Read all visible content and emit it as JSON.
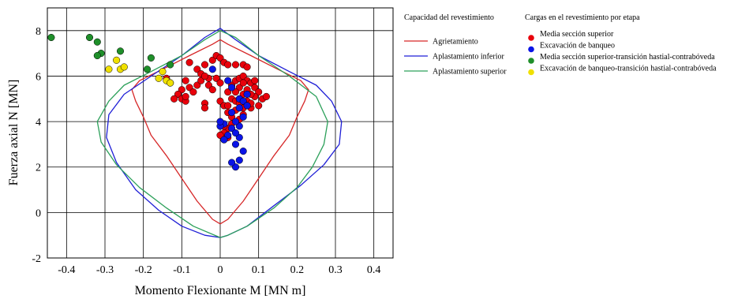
{
  "chart_data": {
    "type": "scatter",
    "xlabel": "Momento Flexionante M [MN m]",
    "ylabel": "Fuerza axial N [MN]",
    "xlim": [
      -0.45,
      0.45
    ],
    "ylim": [
      -2,
      9
    ],
    "xticks": [
      "-0.4",
      "-0.3",
      "-0.2",
      "-0.1",
      "0",
      "0.1",
      "0.2",
      "0.3",
      "0.4"
    ],
    "yticks": [
      "-2",
      "0",
      "2",
      "4",
      "6",
      "8"
    ],
    "grid": true,
    "legend_placement": "right",
    "capacity_legend_title": "Capacidad del revestimiento",
    "loads_legend_title": "Cargas en el revestimiento por etapa",
    "capacity_curves": [
      {
        "name": "Agrietamiento",
        "color": "#d62728",
        "points": [
          [
            0,
            -0.5
          ],
          [
            -0.02,
            -0.3
          ],
          [
            -0.06,
            0.5
          ],
          [
            -0.1,
            1.5
          ],
          [
            -0.14,
            2.5
          ],
          [
            -0.18,
            3.4
          ],
          [
            -0.2,
            4.2
          ],
          [
            -0.22,
            4.9
          ],
          [
            -0.23,
            5.4
          ],
          [
            -0.21,
            5.8
          ],
          [
            -0.15,
            6.3
          ],
          [
            -0.08,
            6.9
          ],
          [
            -0.02,
            7.4
          ],
          [
            0,
            7.6
          ],
          [
            0.02,
            7.4
          ],
          [
            0.08,
            6.9
          ],
          [
            0.15,
            6.3
          ],
          [
            0.21,
            5.8
          ],
          [
            0.23,
            5.4
          ],
          [
            0.22,
            4.9
          ],
          [
            0.2,
            4.2
          ],
          [
            0.18,
            3.4
          ],
          [
            0.14,
            2.5
          ],
          [
            0.1,
            1.5
          ],
          [
            0.06,
            0.5
          ],
          [
            0.02,
            -0.3
          ],
          [
            0,
            -0.5
          ]
        ]
      },
      {
        "name": "Aplastamiento inferior",
        "color": "#1f1fd6",
        "points": [
          [
            0,
            -1.1
          ],
          [
            -0.04,
            -1.0
          ],
          [
            -0.1,
            -0.6
          ],
          [
            -0.16,
            0.1
          ],
          [
            -0.22,
            1.0
          ],
          [
            -0.27,
            2.2
          ],
          [
            -0.296,
            3.3
          ],
          [
            -0.29,
            4.3
          ],
          [
            -0.25,
            5.2
          ],
          [
            -0.18,
            6.0
          ],
          [
            -0.1,
            6.9
          ],
          [
            -0.04,
            7.7
          ],
          [
            0,
            8.1
          ],
          [
            0.04,
            7.6
          ],
          [
            0.1,
            6.9
          ],
          [
            0.18,
            6.2
          ],
          [
            0.25,
            5.6
          ],
          [
            0.29,
            4.9
          ],
          [
            0.316,
            4.0
          ],
          [
            0.31,
            3.0
          ],
          [
            0.27,
            2.1
          ],
          [
            0.21,
            1.2
          ],
          [
            0.14,
            0.3
          ],
          [
            0.07,
            -0.6
          ],
          [
            0.02,
            -1.0
          ],
          [
            0,
            -1.1
          ]
        ]
      },
      {
        "name": "Aplastamiento superior",
        "color": "#2ca05a",
        "points": [
          [
            0,
            -1.1
          ],
          [
            -0.07,
            -0.6
          ],
          [
            -0.14,
            0.2
          ],
          [
            -0.21,
            1.1
          ],
          [
            -0.27,
            2.1
          ],
          [
            -0.31,
            3.1
          ],
          [
            -0.32,
            4.0
          ],
          [
            -0.29,
            4.9
          ],
          [
            -0.25,
            5.6
          ],
          [
            -0.18,
            6.2
          ],
          [
            -0.1,
            6.9
          ],
          [
            -0.04,
            7.6
          ],
          [
            0,
            8.0
          ],
          [
            0.04,
            7.7
          ],
          [
            0.1,
            6.9
          ],
          [
            0.18,
            6.0
          ],
          [
            0.25,
            5.1
          ],
          [
            0.28,
            4.0
          ],
          [
            0.27,
            3.0
          ],
          [
            0.24,
            2.0
          ],
          [
            0.2,
            1.1
          ],
          [
            0.14,
            0.2
          ],
          [
            0.07,
            -0.6
          ],
          [
            0.02,
            -1.0
          ],
          [
            0,
            -1.1
          ]
        ]
      }
    ],
    "series": [
      {
        "name": "Media sección superior",
        "color": "#e8000b",
        "points": [
          [
            -0.08,
            6.6
          ],
          [
            -0.06,
            6.3
          ],
          [
            -0.05,
            6.1
          ],
          [
            -0.04,
            6.5
          ],
          [
            -0.03,
            5.9
          ],
          [
            -0.02,
            6.7
          ],
          [
            -0.01,
            6.9
          ],
          [
            0,
            6.8
          ],
          [
            0.01,
            6.6
          ],
          [
            0.02,
            6.5
          ],
          [
            0.04,
            6.5
          ],
          [
            0.06,
            6.5
          ],
          [
            0.07,
            6.4
          ],
          [
            -0.09,
            5.8
          ],
          [
            -0.08,
            5.5
          ],
          [
            -0.07,
            5.3
          ],
          [
            -0.06,
            5.6
          ],
          [
            -0.05,
            5.8
          ],
          [
            -0.04,
            6.0
          ],
          [
            -0.03,
            5.6
          ],
          [
            -0.02,
            5.4
          ],
          [
            -0.01,
            5.9
          ],
          [
            0,
            5.7
          ],
          [
            -0.1,
            5.4
          ],
          [
            -0.11,
            5.2
          ],
          [
            -0.12,
            5.0
          ],
          [
            -0.1,
            5.0
          ],
          [
            -0.09,
            4.9
          ],
          [
            -0.09,
            5.1
          ],
          [
            -0.13,
            5.7
          ],
          [
            -0.14,
            5.9
          ],
          [
            -0.04,
            4.8
          ],
          [
            -0.04,
            4.6
          ],
          [
            0,
            4.9
          ],
          [
            0.01,
            4.7
          ],
          [
            0.02,
            5.3
          ],
          [
            0.03,
            5.6
          ],
          [
            0.04,
            5.8
          ],
          [
            0.05,
            5.9
          ],
          [
            0.06,
            6.0
          ],
          [
            0.07,
            5.8
          ],
          [
            0.08,
            5.7
          ],
          [
            0.09,
            5.5
          ],
          [
            0.1,
            5.3
          ],
          [
            0.11,
            5.0
          ],
          [
            0.12,
            5.1
          ],
          [
            0.09,
            5.1
          ],
          [
            0.1,
            4.7
          ],
          [
            0.08,
            4.6
          ],
          [
            0.07,
            4.9
          ],
          [
            0.06,
            5.2
          ],
          [
            0.05,
            5.5
          ],
          [
            0.04,
            5.3
          ],
          [
            0.03,
            5.0
          ],
          [
            0.02,
            4.7
          ],
          [
            0.02,
            4.4
          ],
          [
            0.03,
            4.2
          ],
          [
            0.04,
            4.5
          ],
          [
            0.05,
            4.1
          ],
          [
            0.06,
            4.3
          ],
          [
            0.04,
            4.9
          ],
          [
            0.03,
            3.9
          ],
          [
            0.02,
            3.7
          ],
          [
            0.01,
            3.5
          ],
          [
            0.02,
            3.3
          ],
          [
            0.01,
            3.2
          ],
          [
            0.0,
            3.4
          ],
          [
            0.01,
            3.8
          ],
          [
            0.05,
            5.0
          ],
          [
            0.06,
            5.7
          ],
          [
            0.07,
            5.4
          ],
          [
            0.08,
            5.2
          ],
          [
            0.09,
            5.8
          ],
          [
            0.08,
            4.8
          ],
          [
            0.06,
            4.6
          ],
          [
            0.05,
            4.8
          ]
        ]
      },
      {
        "name": "Excavación de banqueo",
        "color": "#0a14e6",
        "points": [
          [
            -0.02,
            6.3
          ],
          [
            0.02,
            5.8
          ],
          [
            0.03,
            5.5
          ],
          [
            0.05,
            5.0
          ],
          [
            0.06,
            4.9
          ],
          [
            0.07,
            4.7
          ],
          [
            0.06,
            4.2
          ],
          [
            0.05,
            3.8
          ],
          [
            0.04,
            4.0
          ],
          [
            0.03,
            3.7
          ],
          [
            0.02,
            3.4
          ],
          [
            0.01,
            3.2
          ],
          [
            0.04,
            3.0
          ],
          [
            0.05,
            3.3
          ],
          [
            0.06,
            2.7
          ],
          [
            0.05,
            2.3
          ],
          [
            0.04,
            2.0
          ],
          [
            0.03,
            2.2
          ],
          [
            0.01,
            3.9
          ],
          [
            0.0,
            3.8
          ],
          [
            0.0,
            4.0
          ],
          [
            0.04,
            3.5
          ],
          [
            0.07,
            5.2
          ],
          [
            0.05,
            4.6
          ],
          [
            0.03,
            4.4
          ]
        ]
      },
      {
        "name": "Media sección superior-transición hastial-contrabóveda",
        "color": "#1f8f2a",
        "points": [
          [
            -0.44,
            7.7
          ],
          [
            -0.34,
            7.7
          ],
          [
            -0.32,
            7.5
          ],
          [
            -0.31,
            7.0
          ],
          [
            -0.32,
            6.9
          ],
          [
            -0.26,
            7.1
          ],
          [
            -0.18,
            6.8
          ],
          [
            -0.13,
            6.5
          ],
          [
            -0.19,
            6.3
          ]
        ]
      },
      {
        "name": "Excavación de banqueo-transición hastial-contrabóveda",
        "color": "#f0e000",
        "points": [
          [
            -0.27,
            6.7
          ],
          [
            -0.26,
            6.3
          ],
          [
            -0.25,
            6.4
          ],
          [
            -0.29,
            6.3
          ],
          [
            -0.15,
            6.2
          ],
          [
            -0.16,
            5.9
          ],
          [
            -0.14,
            5.8
          ],
          [
            -0.13,
            5.7
          ]
        ]
      }
    ]
  }
}
